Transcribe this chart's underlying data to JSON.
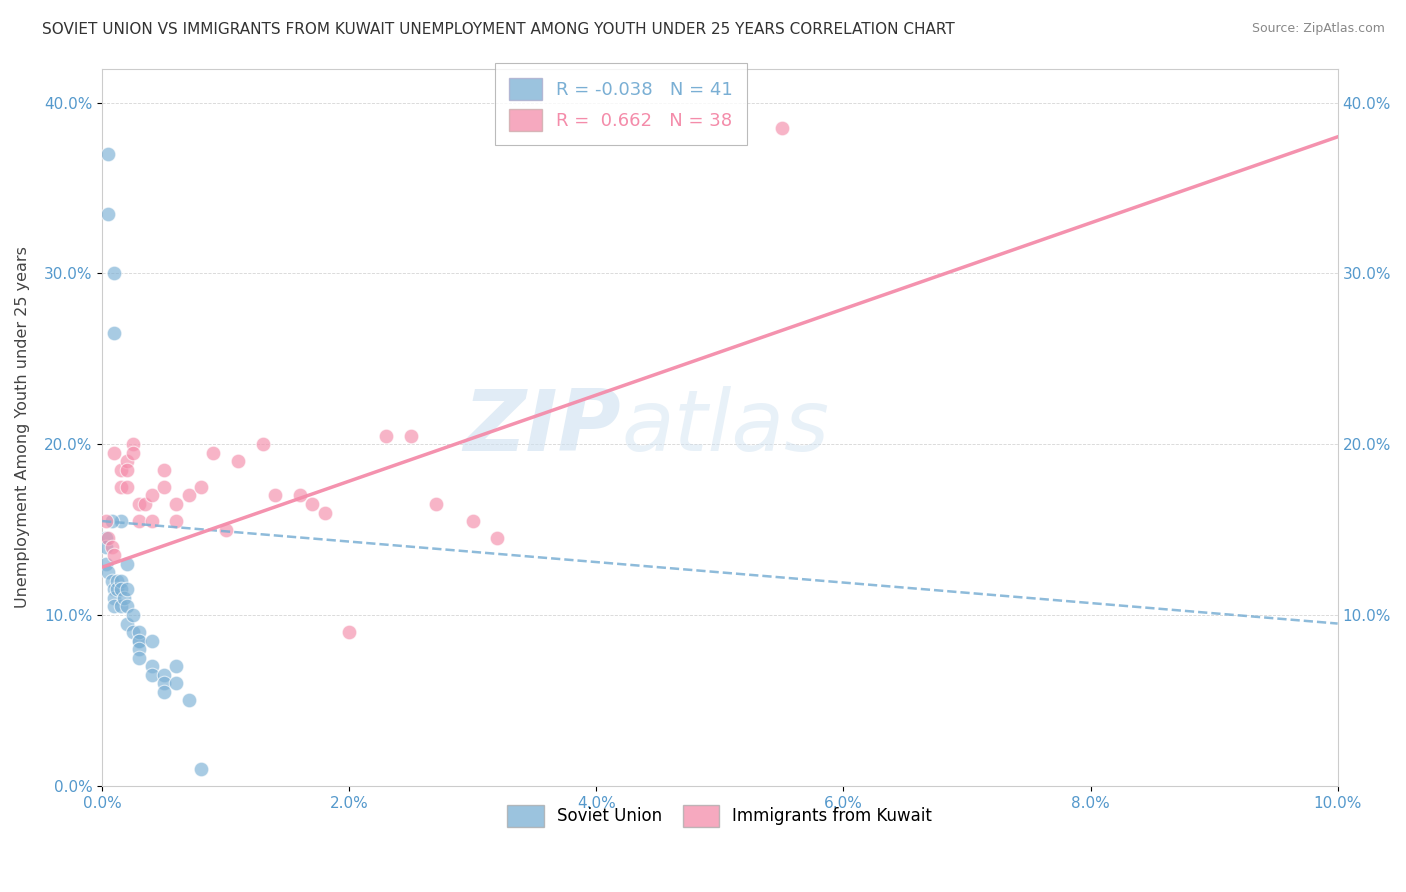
{
  "title": "SOVIET UNION VS IMMIGRANTS FROM KUWAIT UNEMPLOYMENT AMONG YOUTH UNDER 25 YEARS CORRELATION CHART",
  "source": "Source: ZipAtlas.com",
  "ylabel": "Unemployment Among Youth under 25 years",
  "legend1_label": "Soviet Union",
  "legend2_label": "Immigrants from Kuwait",
  "R1": -0.038,
  "N1": 41,
  "R2": 0.662,
  "N2": 38,
  "color1": "#7aafd4",
  "color2": "#f48caa",
  "watermark_zip": "ZIP",
  "watermark_atlas": "atlas",
  "soviet_union_x": [
    0.0005,
    0.0005,
    0.001,
    0.001,
    0.002,
    0.0015,
    0.0008,
    0.0003,
    0.0003,
    0.0003,
    0.0005,
    0.0008,
    0.001,
    0.001,
    0.001,
    0.0012,
    0.0012,
    0.0015,
    0.0015,
    0.0015,
    0.0018,
    0.002,
    0.002,
    0.002,
    0.0025,
    0.0025,
    0.003,
    0.003,
    0.003,
    0.003,
    0.003,
    0.004,
    0.004,
    0.004,
    0.005,
    0.005,
    0.005,
    0.006,
    0.006,
    0.007,
    0.008
  ],
  "soviet_union_y": [
    0.37,
    0.335,
    0.3,
    0.265,
    0.13,
    0.155,
    0.155,
    0.145,
    0.14,
    0.13,
    0.125,
    0.12,
    0.115,
    0.11,
    0.105,
    0.12,
    0.115,
    0.12,
    0.115,
    0.105,
    0.11,
    0.115,
    0.105,
    0.095,
    0.1,
    0.09,
    0.085,
    0.09,
    0.085,
    0.08,
    0.075,
    0.07,
    0.085,
    0.065,
    0.065,
    0.06,
    0.055,
    0.07,
    0.06,
    0.05,
    0.01
  ],
  "kuwait_x": [
    0.0003,
    0.0005,
    0.0008,
    0.001,
    0.001,
    0.0015,
    0.0015,
    0.002,
    0.002,
    0.002,
    0.0025,
    0.0025,
    0.003,
    0.003,
    0.0035,
    0.004,
    0.004,
    0.005,
    0.005,
    0.006,
    0.006,
    0.007,
    0.008,
    0.009,
    0.01,
    0.011,
    0.013,
    0.014,
    0.016,
    0.017,
    0.018,
    0.02,
    0.023,
    0.025,
    0.027,
    0.03,
    0.032,
    0.055
  ],
  "kuwait_y": [
    0.155,
    0.145,
    0.14,
    0.195,
    0.135,
    0.185,
    0.175,
    0.19,
    0.185,
    0.175,
    0.2,
    0.195,
    0.165,
    0.155,
    0.165,
    0.17,
    0.155,
    0.185,
    0.175,
    0.165,
    0.155,
    0.17,
    0.175,
    0.195,
    0.15,
    0.19,
    0.2,
    0.17,
    0.17,
    0.165,
    0.16,
    0.09,
    0.205,
    0.205,
    0.165,
    0.155,
    0.145,
    0.385
  ],
  "trend1_x": [
    0.0,
    0.1
  ],
  "trend1_y": [
    0.155,
    0.095
  ],
  "trend2_x": [
    0.0,
    0.1
  ],
  "trend2_y": [
    0.128,
    0.38
  ],
  "xlim": [
    0.0,
    0.1
  ],
  "ylim": [
    0.0,
    0.42
  ],
  "xticks": [
    0.0,
    0.02,
    0.04,
    0.06,
    0.08,
    0.1
  ],
  "yticks": [
    0.0,
    0.1,
    0.2,
    0.3,
    0.4
  ],
  "right_ytick_labels": [
    "10.0%",
    "20.0%",
    "30.0%",
    "40.0%"
  ]
}
